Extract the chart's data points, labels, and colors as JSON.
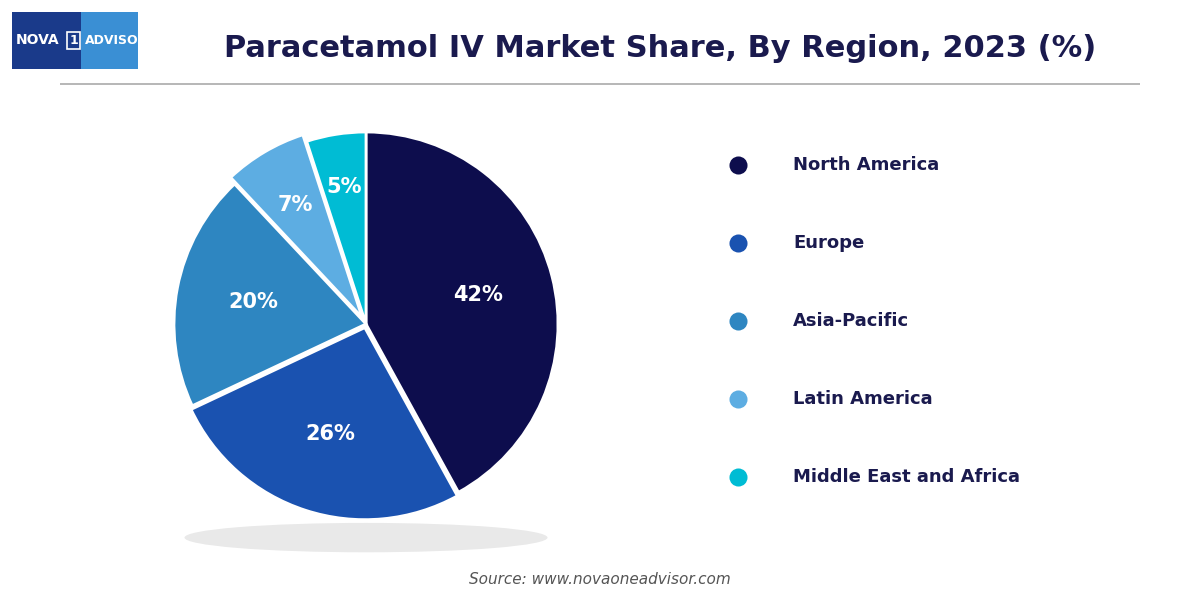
{
  "title": "Paracetamol IV Market Share, By Region, 2023 (%)",
  "title_fontsize": 22,
  "title_color": "#1a1a4e",
  "labels": [
    "North America",
    "Europe",
    "Asia-Pacific",
    "Latin America",
    "Middle East and Africa"
  ],
  "values": [
    42,
    26,
    20,
    7,
    5
  ],
  "colors": [
    "#0d0d4d",
    "#1a52b0",
    "#2e86c1",
    "#5dade2",
    "#00bcd4"
  ],
  "explode": [
    0,
    0.02,
    0,
    0.04,
    0
  ],
  "pct_labels": [
    "42%",
    "26%",
    "20%",
    "7%",
    "5%"
  ],
  "pct_label_color": "#ffffff",
  "pct_fontsize": 15,
  "legend_fontsize": 13,
  "legend_text_color": "#1a1a4e",
  "source_text": "Source: www.novaoneadvisor.com",
  "source_fontsize": 11,
  "source_color": "#555555",
  "bg_color": "#ffffff",
  "separator_color": "#aaaaaa",
  "logo_bg_left": "#1a3a8a",
  "logo_bg_right": "#3a8fd4"
}
